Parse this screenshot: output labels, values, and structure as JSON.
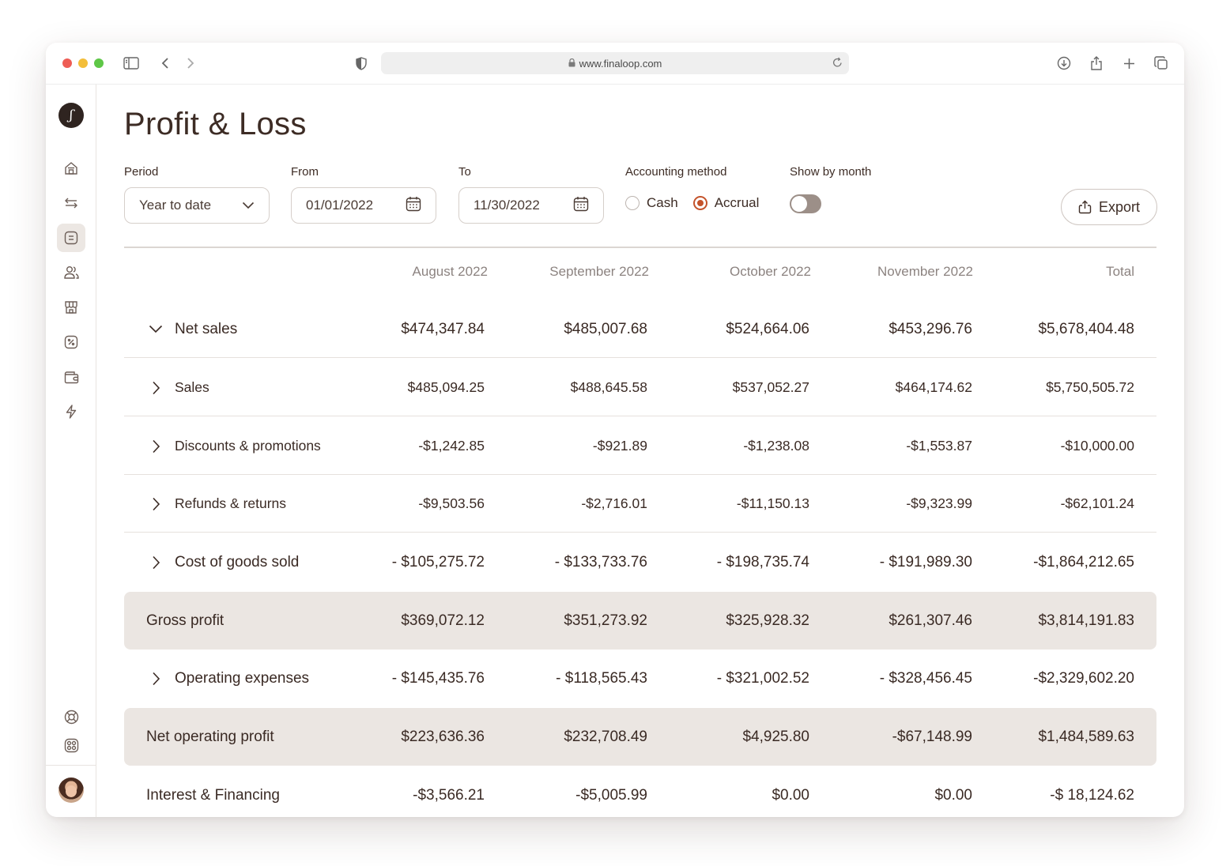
{
  "browser": {
    "url": "www.finaloop.com"
  },
  "page": {
    "title": "Profit & Loss"
  },
  "filters": {
    "period_label": "Period",
    "period_value": "Year to date",
    "from_label": "From",
    "from_value": "01/01/2022",
    "to_label": "To",
    "to_value": "11/30/2022",
    "method_label": "Accounting method",
    "method_options": [
      "Cash",
      "Accrual"
    ],
    "method_selected": "Accrual",
    "show_by_month_label": "Show by month",
    "show_by_month_on": false,
    "export_label": "Export"
  },
  "table": {
    "columns": [
      "August 2022",
      "September 2022",
      "October 2022",
      "November 2022",
      "Total"
    ],
    "rows": [
      {
        "label": "Net sales",
        "expander": "expanded",
        "values": [
          "$474,347.84",
          "$485,007.68",
          "$524,664.06",
          "$453,296.76",
          "$5,678,404.48"
        ]
      },
      {
        "label": "Sales",
        "expander": "collapsed",
        "values": [
          "$485,094.25",
          "$488,645.58",
          "$537,052.27",
          "$464,174.62",
          "$5,750,505.72"
        ]
      },
      {
        "label": "Discounts & promotions",
        "expander": "collapsed",
        "values": [
          "-$1,242.85",
          "-$921.89",
          "-$1,238.08",
          "-$1,553.87",
          "-$10,000.00"
        ]
      },
      {
        "label": "Refunds & returns",
        "expander": "collapsed",
        "values": [
          "-$9,503.56",
          "-$2,716.01",
          "-$11,150.13",
          "-$9,323.99",
          "-$62,101.24"
        ]
      },
      {
        "label": "Cost of goods sold",
        "expander": "collapsed",
        "values": [
          "- $105,275.72",
          "- $133,733.76",
          "- $198,735.74",
          "- $191,989.30",
          "-$1,864,212.65"
        ]
      },
      {
        "label": "Gross profit",
        "expander": "none",
        "values": [
          "$369,072.12",
          "$351,273.92",
          "$325,928.32",
          "$261,307.46",
          "$3,814,191.83"
        ]
      },
      {
        "label": "Operating expenses",
        "expander": "collapsed",
        "values": [
          "- $145,435.76",
          "- $118,565.43",
          "- $321,002.52",
          "- $328,456.45",
          "-$2,329,602.20"
        ]
      },
      {
        "label": "Net operating profit",
        "expander": "none",
        "values": [
          "$223,636.36",
          "$232,708.49",
          "$4,925.80",
          "-$67,148.99",
          "$1,484,589.63"
        ]
      },
      {
        "label": "Interest & Financing",
        "expander": "none",
        "values": [
          "-$3,566.21",
          "-$5,005.99",
          "$0.00",
          "$0.00",
          "-$ 18,124.62"
        ]
      }
    ]
  },
  "sidebar": {
    "items": [
      {
        "icon": "home-icon"
      },
      {
        "icon": "transfer-arrows-icon"
      },
      {
        "icon": "report-icon",
        "active": true
      },
      {
        "icon": "users-icon"
      },
      {
        "icon": "store-icon"
      },
      {
        "icon": "percent-icon"
      },
      {
        "icon": "wallet-icon"
      },
      {
        "icon": "lightning-icon"
      }
    ],
    "bottom": [
      {
        "icon": "help-lifebuoy-icon"
      },
      {
        "icon": "settings-apps-icon"
      }
    ]
  },
  "colors": {
    "accent": "#c4532b",
    "text": "#3a2a24",
    "shaded_row": "#ebe6e2"
  }
}
